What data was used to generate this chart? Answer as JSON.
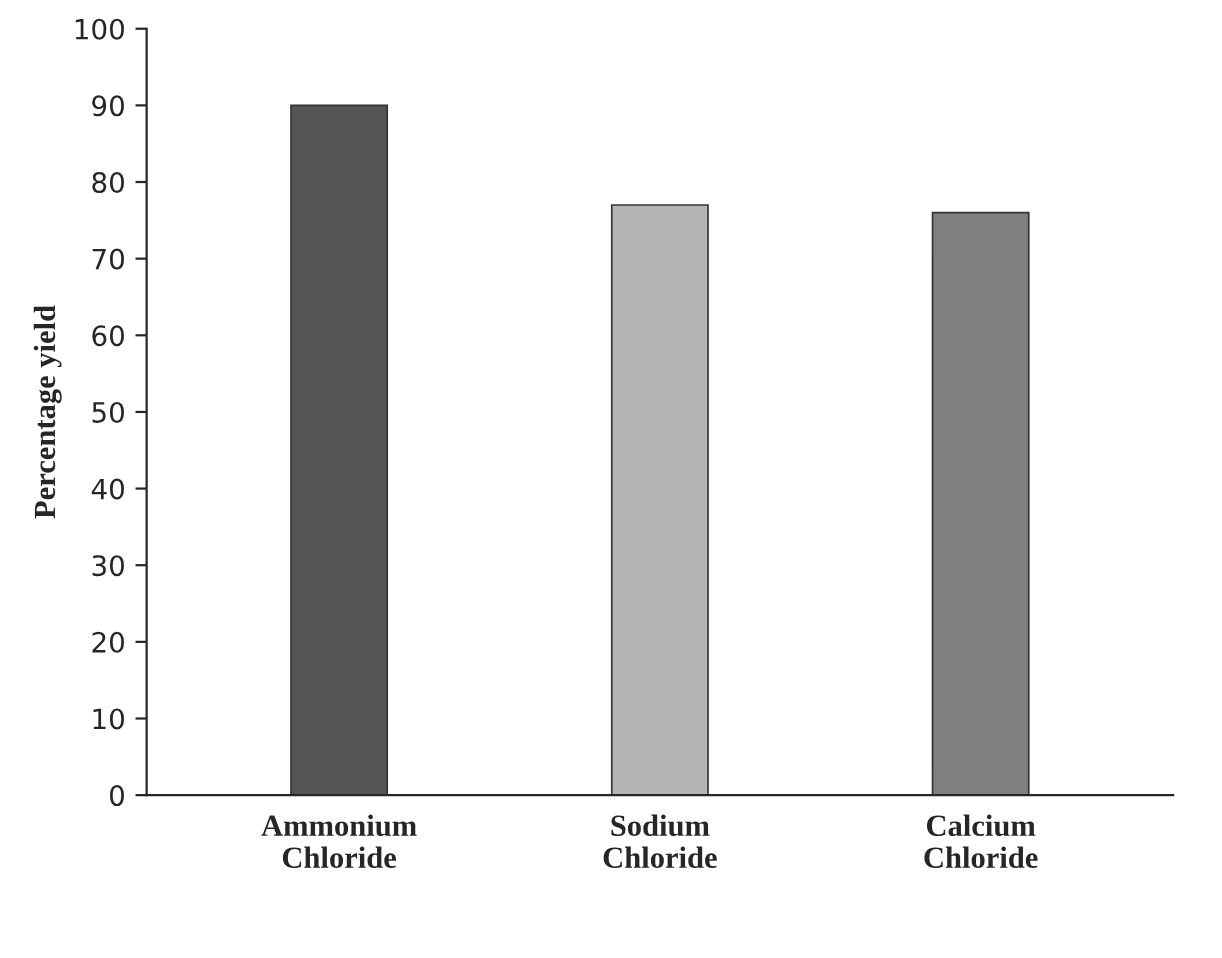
{
  "chart_data": {
    "type": "bar",
    "ylabel": "Percentage yield",
    "categories": [
      "Ammonium\nChloride",
      "Sodium\nChloride",
      "Calcium\nChloride"
    ],
    "values": [
      90,
      77,
      76
    ],
    "colors": [
      "#555555",
      "#b4b4b4",
      "#7f7f7f"
    ],
    "ylim": [
      0,
      100
    ],
    "yticks": [
      0,
      10,
      20,
      30,
      40,
      50,
      60,
      70,
      80,
      90,
      100
    ],
    "grid": false
  }
}
